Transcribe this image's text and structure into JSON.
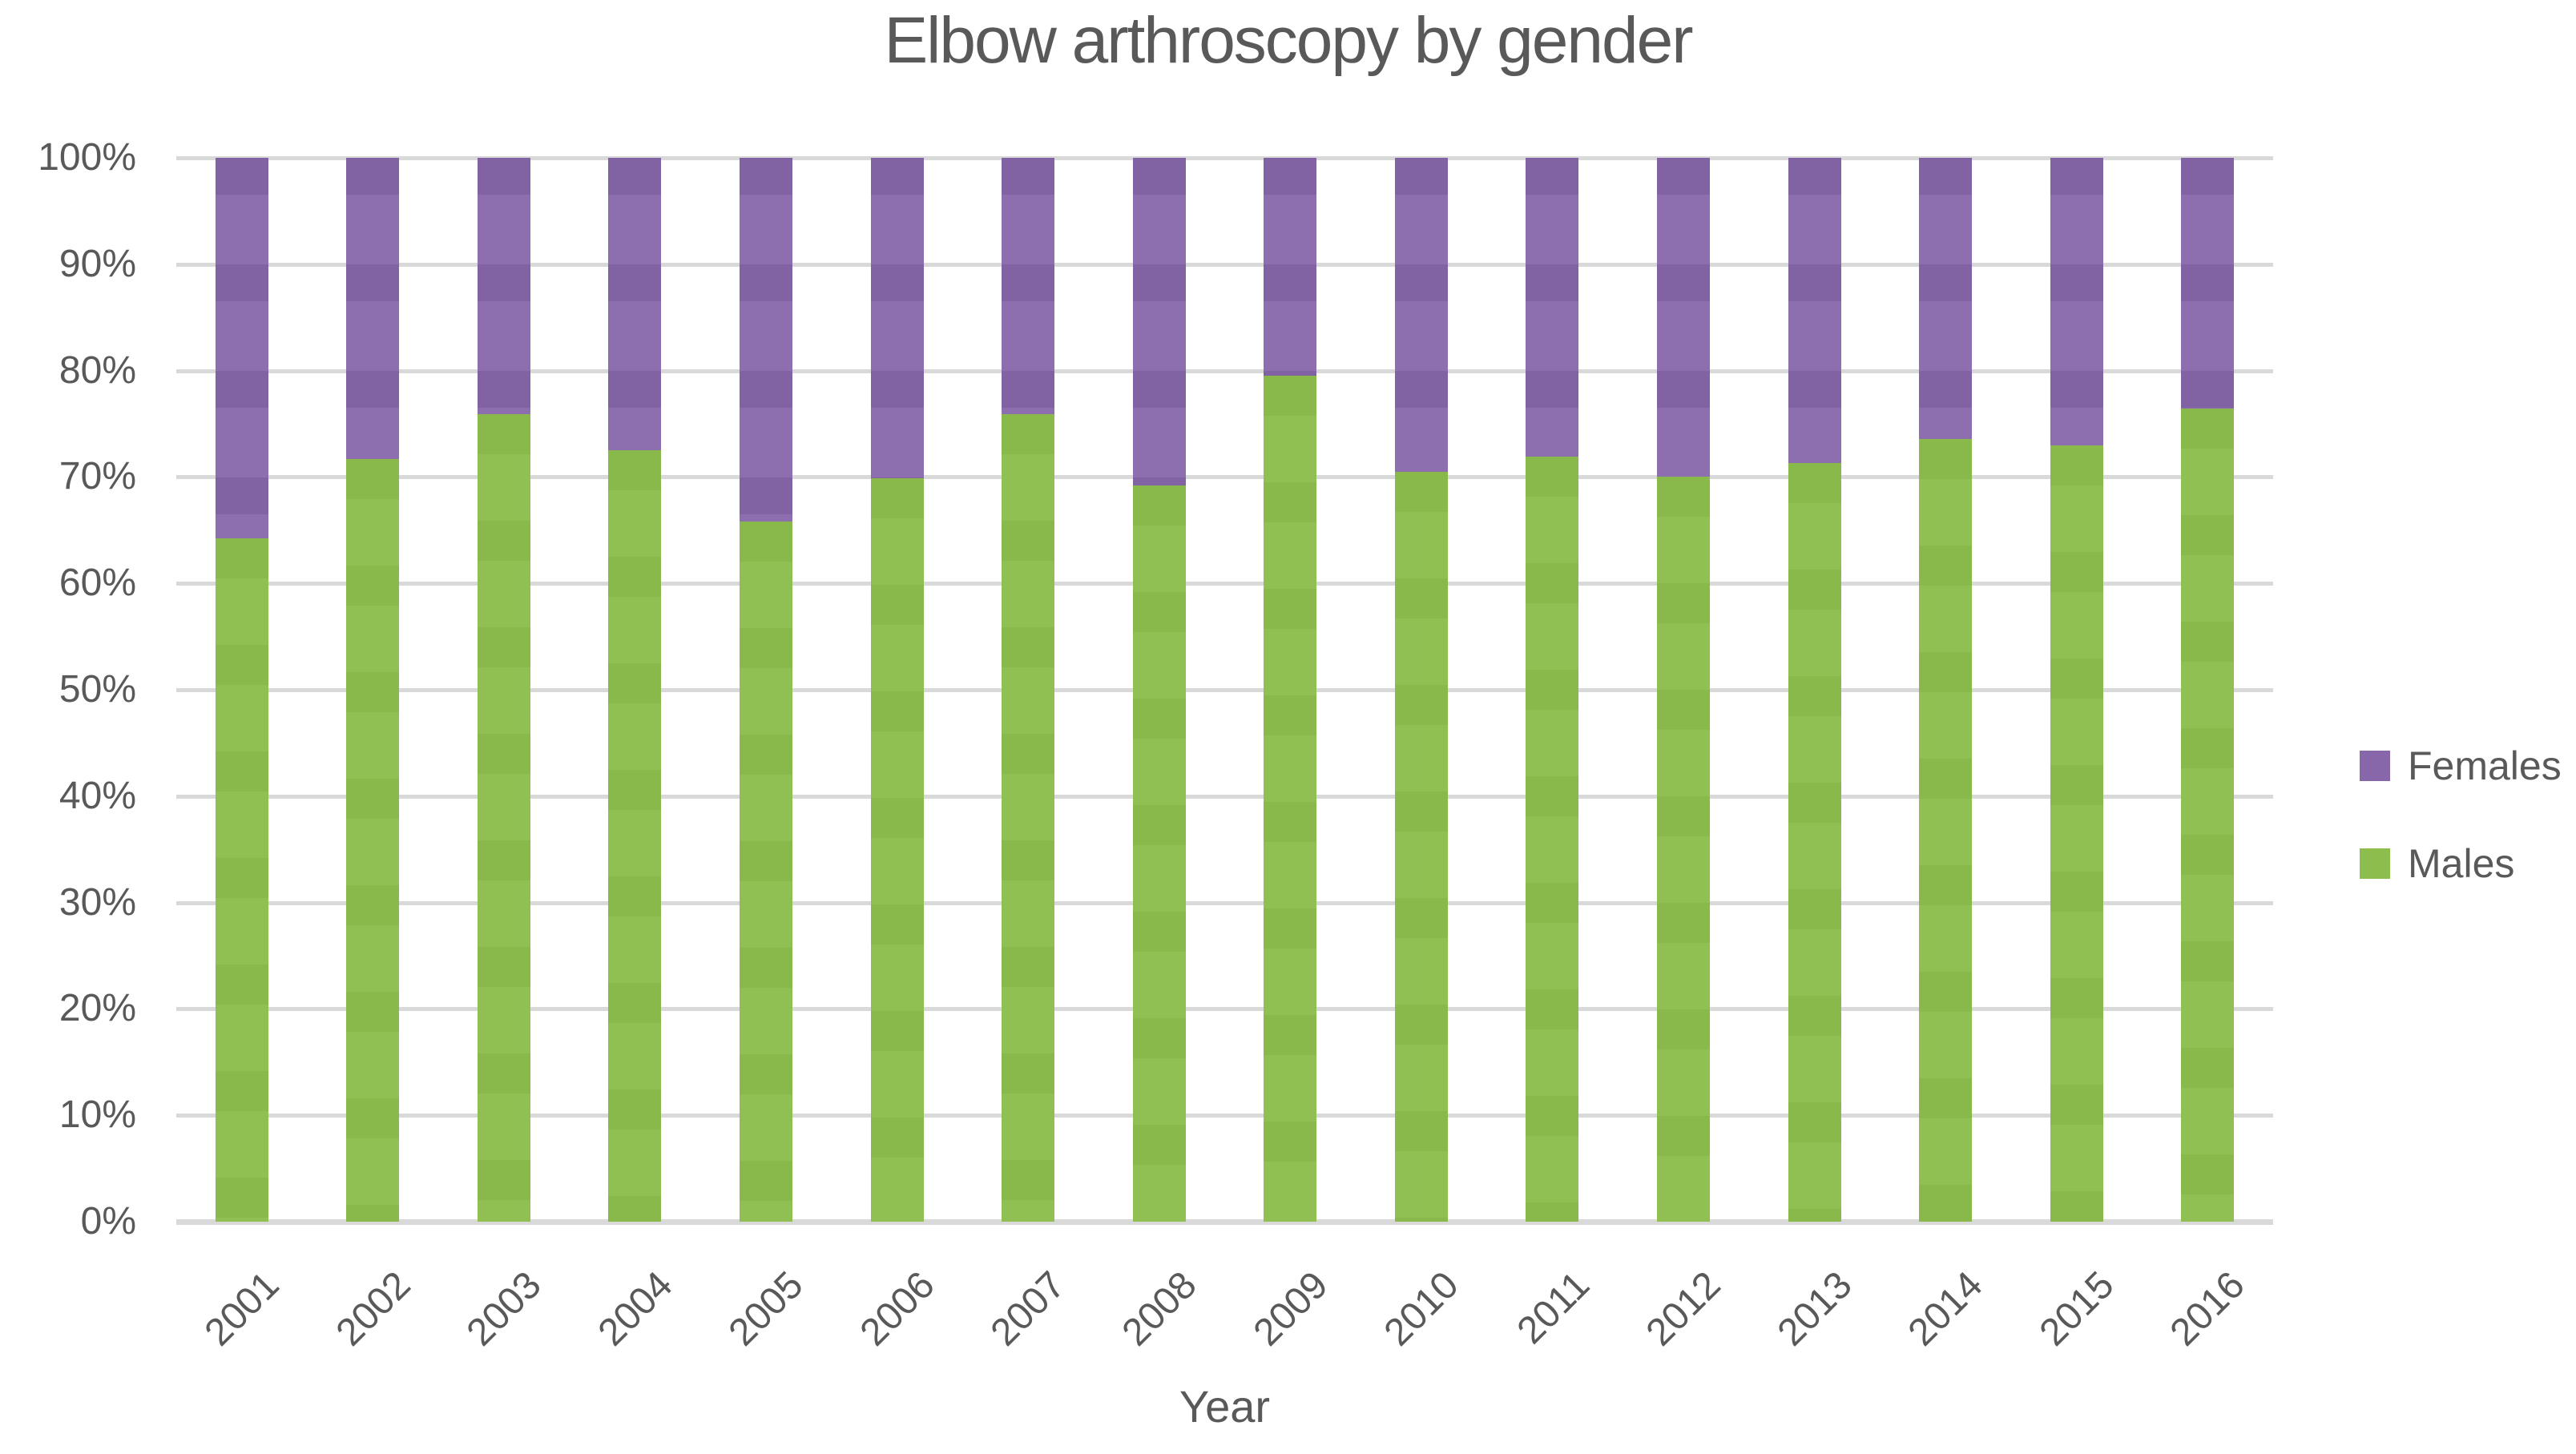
{
  "title": "Elbow arthroscopy by gender",
  "colors": {
    "males": "#8CBD4D",
    "females": "#8766AA",
    "text": "#595959",
    "gridline": "#D9D9D9",
    "background": "#FFFFFF"
  },
  "y_axis": {
    "tick_labels": [
      "0%",
      "10%",
      "20%",
      "30%",
      "40%",
      "50%",
      "60%",
      "70%",
      "80%",
      "90%",
      "100%"
    ],
    "tick_values": [
      0,
      10,
      20,
      30,
      40,
      50,
      60,
      70,
      80,
      90,
      100
    ]
  },
  "x_axis": {
    "title": "Year"
  },
  "legend": {
    "items": [
      {
        "label": "Females",
        "color_key": "females"
      },
      {
        "label": "Males",
        "color_key": "males"
      }
    ]
  },
  "chart_data": {
    "type": "bar",
    "stacked": true,
    "percent_stacked": true,
    "title": "Elbow arthroscopy by gender",
    "xlabel": "Year",
    "ylabel": "",
    "ylim": [
      0,
      100
    ],
    "unit": "%",
    "grid": true,
    "legend_position": "right",
    "categories": [
      "2001",
      "2002",
      "2003",
      "2004",
      "2005",
      "2006",
      "2007",
      "2008",
      "2009",
      "2010",
      "2011",
      "2012",
      "2013",
      "2014",
      "2015",
      "2016"
    ],
    "series": [
      {
        "name": "Males",
        "color": "#8CBD4D",
        "values": [
          64.2,
          71.7,
          75.9,
          72.5,
          65.8,
          69.9,
          75.9,
          69.2,
          79.5,
          70.5,
          71.9,
          70.0,
          71.3,
          73.6,
          73.0,
          76.4
        ]
      },
      {
        "name": "Females",
        "color": "#8766AA",
        "values": [
          35.8,
          28.3,
          24.1,
          27.5,
          34.2,
          30.1,
          24.1,
          30.8,
          20.5,
          29.5,
          28.1,
          30.0,
          28.7,
          26.4,
          27.0,
          23.6
        ]
      }
    ]
  }
}
